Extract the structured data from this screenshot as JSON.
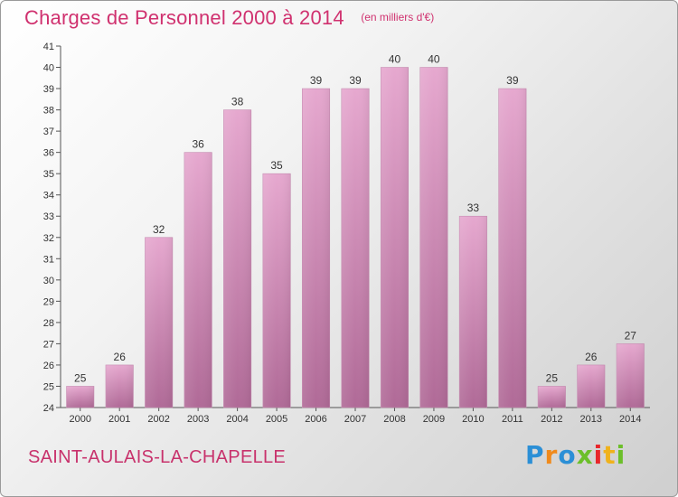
{
  "header": {
    "title": "Charges de Personnel 2000 à 2014",
    "unit_note": "(en milliers d'€)"
  },
  "footer": {
    "commune": "SAINT-AULAIS-LA-CHAPELLE",
    "logo_text": "Proxiti"
  },
  "colors": {
    "title": "#d0316f",
    "bar_top": "#e6a8cf",
    "bar_bottom": "#b06a97",
    "axis": "#333333"
  },
  "chart_data": {
    "type": "bar",
    "title": "Charges de Personnel 2000 à 2014",
    "subtitle": "(en milliers d'€)",
    "categories": [
      "2000",
      "2001",
      "2002",
      "2003",
      "2004",
      "2005",
      "2006",
      "2007",
      "2008",
      "2009",
      "2010",
      "2011",
      "2012",
      "2013",
      "2014"
    ],
    "values": [
      25,
      26,
      32,
      36,
      38,
      35,
      39,
      39,
      40,
      40,
      33,
      39,
      25,
      26,
      27
    ],
    "ylim": [
      24,
      41
    ],
    "yticks": [
      24,
      25,
      26,
      27,
      28,
      29,
      30,
      31,
      32,
      33,
      34,
      35,
      36,
      37,
      38,
      39,
      40,
      41
    ],
    "grid": false,
    "data_labels": true
  }
}
